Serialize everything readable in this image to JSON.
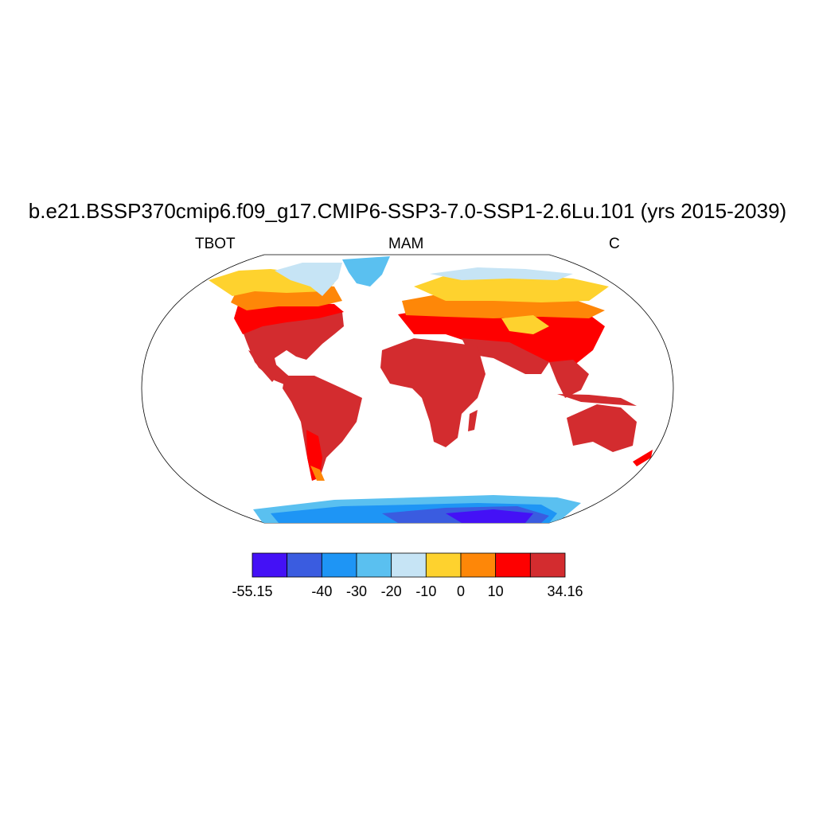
{
  "title": "b.e21.BSSP370cmip6.f09_g17.CMIP6-SSP3-7.0-SSP1-2.6Lu.101 (yrs 2015-2039)",
  "left_string": "TBOT",
  "center_string": "MAM",
  "right_string": "C",
  "projection": "Robinson",
  "colorbar": {
    "colors": [
      "#4411f6",
      "#3a5ce0",
      "#1e95f5",
      "#5ac0f0",
      "#c6e4f5",
      "#fed22e",
      "#fe8708",
      "#fe0000",
      "#d32c2f"
    ],
    "labels": [
      "-55.15",
      "-40",
      "-30",
      "-20",
      "-10",
      "0",
      "10",
      "34.16"
    ],
    "label_boundary_index": [
      0,
      2,
      3,
      4,
      5,
      6,
      7,
      9
    ]
  }
}
